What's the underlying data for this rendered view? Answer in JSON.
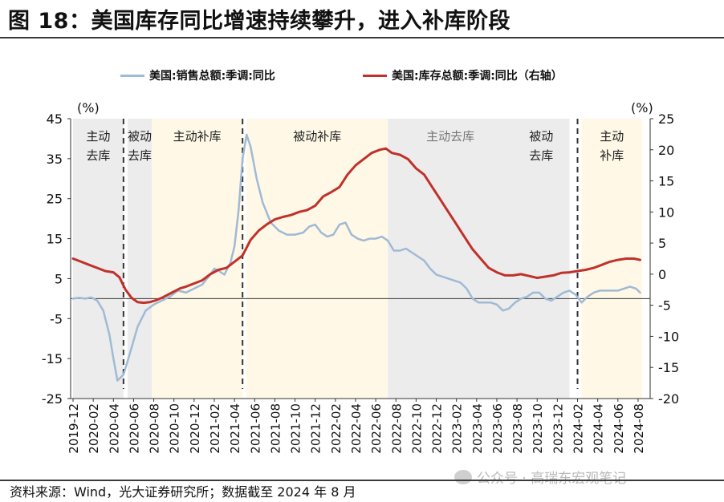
{
  "title": "图 18：美国库存同比增速持续攀升，进入补库阶段",
  "source": "资料来源：Wind，光大证券研究所；数据截至 2024 年 8 月",
  "watermark": "公众号 · 高瑞东宏观笔记",
  "colors": {
    "sales": "#9fbad4",
    "inventory": "#c0312b",
    "active_fill": "#fff8e6",
    "passive_fill": "#ececec"
  },
  "chart_data": {
    "type": "line",
    "legend": [
      {
        "name": "美国:销售总额:季调:同比",
        "color": "#9fbad4",
        "axis": "left"
      },
      {
        "name": "美国:库存总额:季调:同比（右轴）",
        "color": "#c0312b",
        "axis": "right"
      }
    ],
    "left_axis": {
      "unit": "(%)",
      "min": -25,
      "max": 45,
      "ticks": [
        45,
        35,
        25,
        15,
        5,
        -5,
        -15,
        -25
      ]
    },
    "right_axis": {
      "unit": "(%)",
      "min": -20,
      "max": 25,
      "ticks": [
        25,
        20,
        15,
        10,
        5,
        0,
        -5,
        -10,
        -15,
        -20
      ]
    },
    "x_tick_labels": [
      "2019-12",
      "2020-02",
      "2020-04",
      "2020-06",
      "2020-08",
      "2020-10",
      "2020-12",
      "2021-02",
      "2021-04",
      "2021-06",
      "2021-08",
      "2021-10",
      "2021-12",
      "2022-02",
      "2022-04",
      "2022-06",
      "2022-08",
      "2022-10",
      "2022-12",
      "2023-02",
      "2023-04",
      "2023-06",
      "2023-08",
      "2023-10",
      "2023-12",
      "2024-02",
      "2024-04",
      "2024-06",
      "2024-08"
    ],
    "regions": [
      {
        "label": "主动\n去库",
        "kind": "passive",
        "start": 0,
        "end": 2.5
      },
      {
        "label": "被动\n去库",
        "kind": "passive",
        "start": 2.7,
        "end": 3.9
      },
      {
        "label": "主动补库",
        "kind": "active",
        "start": 3.9,
        "end": 8.4
      },
      {
        "label": "被动补库",
        "kind": "active",
        "start": 8.6,
        "end": 15.6
      },
      {
        "label": "主动去库",
        "kind": "passive",
        "start": 15.6,
        "end": 21.8
      },
      {
        "label": "被动\n去库",
        "kind": "passive",
        "start": 21.8,
        "end": 24.6
      },
      {
        "label": "主动\n补库",
        "kind": "active",
        "start": 25.2,
        "end": 28.2
      }
    ],
    "dividers": [
      2.5,
      8.4,
      25.0
    ],
    "series": [
      {
        "name": "美国:销售总额:季调:同比",
        "axis": "left",
        "x": [
          0,
          0.3,
          0.6,
          0.9,
          1.2,
          1.5,
          1.8,
          2.0,
          2.2,
          2.5,
          2.8,
          3.2,
          3.6,
          4.0,
          4.4,
          4.8,
          5.2,
          5.6,
          6.0,
          6.4,
          6.8,
          7.0,
          7.2,
          7.5,
          7.8,
          8.0,
          8.2,
          8.4,
          8.6,
          8.8,
          9.1,
          9.4,
          9.8,
          10.2,
          10.6,
          11.0,
          11.4,
          11.7,
          12.0,
          12.3,
          12.6,
          12.9,
          13.2,
          13.5,
          13.8,
          14.1,
          14.4,
          14.7,
          15.0,
          15.3,
          15.6,
          15.9,
          16.2,
          16.5,
          16.8,
          17.1,
          17.4,
          17.7,
          18.0,
          18.3,
          18.6,
          18.9,
          19.2,
          19.5,
          19.8,
          20.1,
          20.4,
          20.7,
          21.0,
          21.3,
          21.6,
          21.9,
          22.2,
          22.5,
          22.8,
          23.1,
          23.4,
          23.7,
          24.0,
          24.3,
          24.6,
          24.9,
          25.2,
          25.5,
          25.8,
          26.1,
          26.4,
          26.7,
          27.0,
          27.3,
          27.6,
          27.9,
          28.1
        ],
        "values": [
          0.0,
          0.2,
          0.0,
          0.3,
          -0.5,
          -3.0,
          -9.0,
          -15.0,
          -20.5,
          -19.0,
          -14.0,
          -7.0,
          -3.0,
          -1.5,
          -0.5,
          0.5,
          2.0,
          1.5,
          2.5,
          3.5,
          6.0,
          7.5,
          7.0,
          6.0,
          9.0,
          13.0,
          22.0,
          35.0,
          41.0,
          38.0,
          30.0,
          24.0,
          19.0,
          17.0,
          16.0,
          16.0,
          16.5,
          18.0,
          18.5,
          16.5,
          15.5,
          16.0,
          18.5,
          19.0,
          16.0,
          15.0,
          14.5,
          15.0,
          15.0,
          15.5,
          14.5,
          12.0,
          12.0,
          12.5,
          11.5,
          10.5,
          9.5,
          7.5,
          6.0,
          5.5,
          5.0,
          4.5,
          4.0,
          2.5,
          0.0,
          -1.0,
          -1.0,
          -1.0,
          -1.5,
          -3.0,
          -2.5,
          -1.0,
          0.0,
          0.5,
          1.5,
          1.5,
          0.0,
          -0.5,
          0.5,
          1.5,
          2.0,
          1.0,
          -1.0,
          0.5,
          1.5,
          2.0,
          2.0,
          2.0,
          2.0,
          2.5,
          3.0,
          2.5,
          1.5
        ]
      },
      {
        "name": "美国:库存总额:季调:同比（右轴）",
        "axis": "right",
        "x": [
          0,
          0.4,
          0.8,
          1.2,
          1.6,
          2.0,
          2.3,
          2.6,
          2.9,
          3.2,
          3.5,
          3.8,
          4.1,
          4.4,
          4.7,
          5.0,
          5.3,
          5.6,
          6.0,
          6.4,
          6.8,
          7.2,
          7.6,
          8.0,
          8.4,
          8.8,
          9.2,
          9.6,
          10.0,
          10.4,
          10.8,
          11.2,
          11.6,
          12.0,
          12.4,
          12.8,
          13.2,
          13.6,
          14.0,
          14.4,
          14.8,
          15.2,
          15.5,
          15.8,
          16.2,
          16.6,
          17.0,
          17.4,
          17.8,
          18.2,
          18.6,
          19.0,
          19.4,
          19.8,
          20.2,
          20.6,
          21.0,
          21.4,
          21.8,
          22.2,
          22.6,
          23.0,
          23.4,
          23.8,
          24.2,
          24.6,
          25.0,
          25.4,
          25.8,
          26.2,
          26.6,
          27.0,
          27.4,
          27.8,
          28.1
        ],
        "values": [
          2.5,
          2.0,
          1.5,
          1.0,
          0.5,
          0.3,
          -0.5,
          -2.5,
          -3.8,
          -4.5,
          -4.6,
          -4.5,
          -4.2,
          -3.8,
          -3.3,
          -2.8,
          -2.3,
          -2.0,
          -1.5,
          -1.0,
          0.0,
          0.7,
          1.0,
          2.0,
          3.0,
          5.5,
          7.0,
          8.0,
          8.8,
          9.2,
          9.5,
          10.0,
          10.3,
          11.0,
          12.5,
          13.2,
          14.0,
          16.0,
          17.5,
          18.5,
          19.5,
          20.0,
          20.2,
          19.5,
          19.2,
          18.5,
          17.0,
          16.0,
          14.0,
          12.0,
          10.0,
          8.0,
          6.0,
          4.0,
          2.5,
          1.0,
          0.3,
          -0.2,
          -0.2,
          0.0,
          -0.3,
          -0.6,
          -0.4,
          -0.2,
          0.2,
          0.3,
          0.5,
          0.7,
          1.0,
          1.5,
          2.0,
          2.3,
          2.5,
          2.5,
          2.3
        ]
      }
    ]
  }
}
